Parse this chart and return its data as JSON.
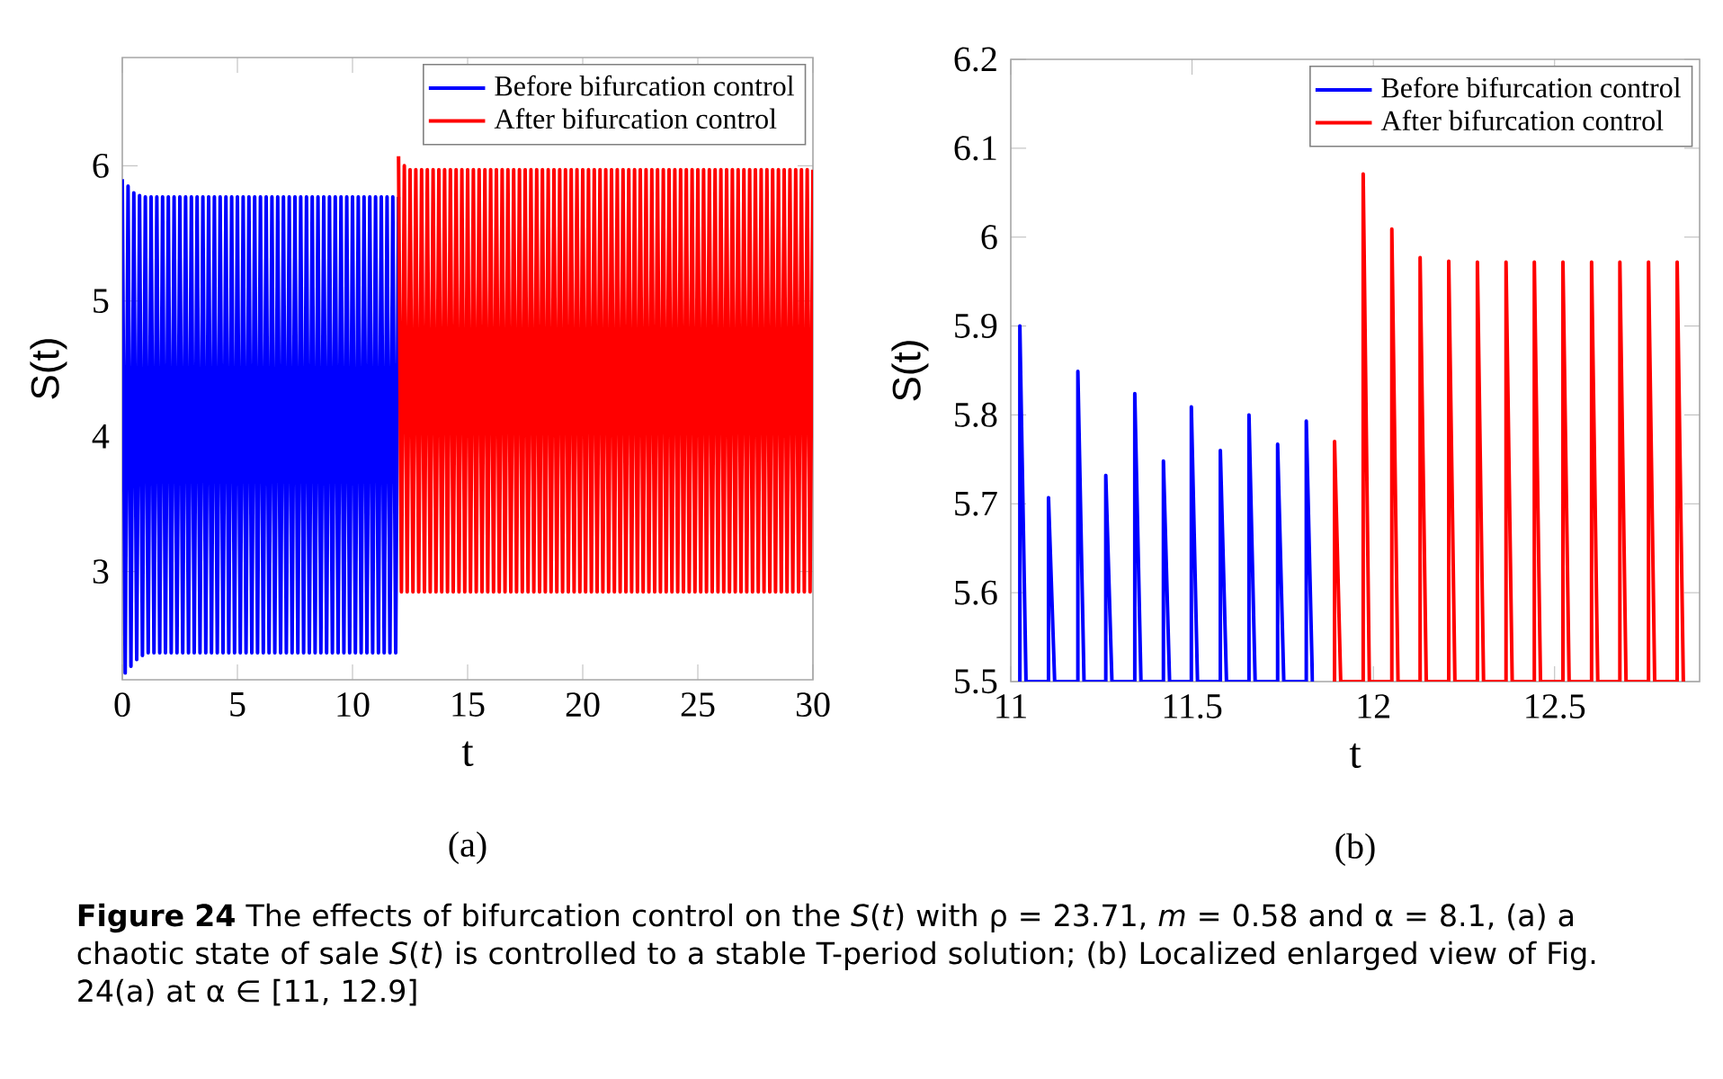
{
  "chart_data": [
    {
      "type": "line",
      "subtitle": "(a)",
      "xlabel": "t",
      "ylabel": "S(t)",
      "xlim": [
        0,
        30
      ],
      "ylim": [
        2.2,
        6.8
      ],
      "xticks": [
        0,
        5,
        10,
        15,
        20,
        25,
        30
      ],
      "yticks": [
        3,
        4,
        5,
        6
      ],
      "legend": "top right",
      "line_style": "solid",
      "annotations": [
        "**Figure 24** The effects of bifurcation control on the *S*(*t*) with ρ = 23.71, *m* = 0.58 and α = 8.1, (a) a chaotic state of sale *S*(*t*) is controlled to a stable T-period solution; (b) Localized enlarged view of Fig. 24(a) at α ∈ [11, 12.9]"
      ],
      "series": [
        {
          "name": "Before bifurcation control",
          "color": "#0000ff",
          "x": [
            0,
            0.125,
            0.25,
            0.375,
            0.5,
            0.625,
            0.75,
            0.875,
            1,
            1.125,
            1.25,
            1.375,
            1.5,
            1.625,
            1.75,
            1.875,
            2,
            2.125,
            2.25,
            2.375,
            2.5,
            2.625,
            2.75,
            2.875,
            3,
            3.125,
            3.25,
            3.375,
            3.5,
            3.625,
            3.75,
            3.875,
            4,
            4.125,
            4.25,
            4.375,
            4.5,
            4.625,
            4.75,
            4.875,
            5,
            5.125,
            5.25,
            5.375,
            5.5,
            5.625,
            5.75,
            5.875,
            6,
            6.125,
            6.25,
            6.375,
            6.5,
            6.625,
            6.75,
            6.875,
            7,
            7.125,
            7.25,
            7.375,
            7.5,
            7.625,
            7.75,
            7.875,
            8,
            8.125,
            8.25,
            8.375,
            8.5,
            8.625,
            8.75,
            8.875,
            9,
            9.125,
            9.25,
            9.375,
            9.5,
            9.625,
            9.75,
            9.875,
            10,
            10.125,
            10.25,
            10.375,
            10.5,
            10.625,
            10.75,
            10.875,
            11,
            11.125,
            11.25,
            11.375,
            11.5,
            11.625,
            11.75,
            11.875,
            12
          ],
          "values": [
            5.9,
            2.25,
            5.85,
            2.3,
            5.8,
            2.35,
            5.78,
            2.38,
            5.77,
            2.4,
            5.77,
            2.4,
            5.77,
            2.4,
            5.77,
            2.4,
            5.77,
            2.4,
            5.77,
            2.4,
            5.77,
            2.4,
            5.77,
            2.4,
            5.77,
            2.4,
            5.77,
            2.4,
            5.77,
            2.4,
            5.77,
            2.4,
            5.77,
            2.4,
            5.77,
            2.4,
            5.77,
            2.4,
            5.77,
            2.4,
            5.77,
            2.4,
            5.77,
            2.4,
            5.77,
            2.4,
            5.77,
            2.4,
            5.77,
            2.4,
            5.77,
            2.4,
            5.77,
            2.4,
            5.77,
            2.4,
            5.77,
            2.4,
            5.77,
            2.4,
            5.77,
            2.4,
            5.77,
            2.4,
            5.77,
            2.4,
            5.77,
            2.4,
            5.77,
            2.4,
            5.77,
            2.4,
            5.77,
            2.4,
            5.77,
            2.4,
            5.77,
            2.4,
            5.77,
            2.4,
            5.77,
            2.4,
            5.77,
            2.4,
            5.77,
            2.4,
            5.77,
            2.4,
            5.77,
            2.4,
            5.77,
            2.4,
            5.77,
            2.4,
            5.77,
            2.4,
            5.77
          ]
        },
        {
          "name": "After bifurcation control",
          "color": "#ff0000",
          "x": [
            12,
            12.125,
            12.25,
            12.375,
            12.5,
            12.625,
            12.75,
            12.875,
            13,
            13.125,
            13.25,
            13.375,
            13.5,
            13.625,
            13.75,
            13.875,
            14,
            14.125,
            14.25,
            14.375,
            14.5,
            14.625,
            14.75,
            14.875,
            15,
            15.125,
            15.25,
            15.375,
            15.5,
            15.625,
            15.75,
            15.875,
            16,
            16.125,
            16.25,
            16.375,
            16.5,
            16.625,
            16.75,
            16.875,
            17,
            17.125,
            17.25,
            17.375,
            17.5,
            17.625,
            17.75,
            17.875,
            18,
            18.125,
            18.25,
            18.375,
            18.5,
            18.625,
            18.75,
            18.875,
            19,
            19.125,
            19.25,
            19.375,
            19.5,
            19.625,
            19.75,
            19.875,
            20,
            20.125,
            20.25,
            20.375,
            20.5,
            20.625,
            20.75,
            20.875,
            21,
            21.125,
            21.25,
            21.375,
            21.5,
            21.625,
            21.75,
            21.875,
            22,
            22.125,
            22.25,
            22.375,
            22.5,
            22.625,
            22.75,
            22.875,
            23,
            23.125,
            23.25,
            23.375,
            23.5,
            23.625,
            23.75,
            23.875,
            24,
            24.125,
            24.25,
            24.375,
            24.5,
            24.625,
            24.75,
            24.875,
            25,
            25.125,
            25.25,
            25.375,
            25.5,
            25.625,
            25.75,
            25.875,
            26,
            26.125,
            26.25,
            26.375,
            26.5,
            26.625,
            26.75,
            26.875,
            27,
            27.125,
            27.25,
            27.375,
            27.5,
            27.625,
            27.75,
            27.875,
            28,
            28.125,
            28.25,
            28.375,
            28.5,
            28.625,
            28.75,
            28.875,
            29,
            29.125,
            29.25,
            29.375,
            29.5,
            29.625,
            29.75,
            29.875,
            30
          ],
          "values": [
            6.07,
            2.85,
            6.0,
            2.85,
            5.97,
            2.85,
            5.97,
            2.85,
            5.97,
            2.85,
            5.97,
            2.85,
            5.97,
            2.85,
            5.97,
            2.85,
            5.97,
            2.85,
            5.97,
            2.85,
            5.97,
            2.85,
            5.97,
            2.85,
            5.97,
            2.85,
            5.97,
            2.85,
            5.97,
            2.85,
            5.97,
            2.85,
            5.97,
            2.85,
            5.97,
            2.85,
            5.97,
            2.85,
            5.97,
            2.85,
            5.97,
            2.85,
            5.97,
            2.85,
            5.97,
            2.85,
            5.97,
            2.85,
            5.97,
            2.85,
            5.97,
            2.85,
            5.97,
            2.85,
            5.97,
            2.85,
            5.97,
            2.85,
            5.97,
            2.85,
            5.97,
            2.85,
            5.97,
            2.85,
            5.97,
            2.85,
            5.97,
            2.85,
            5.97,
            2.85,
            5.97,
            2.85,
            5.97,
            2.85,
            5.97,
            2.85,
            5.97,
            2.85,
            5.97,
            2.85,
            5.97,
            2.85,
            5.97,
            2.85,
            5.97,
            2.85,
            5.97,
            2.85,
            5.97,
            2.85,
            5.97,
            2.85,
            5.97,
            2.85,
            5.97,
            2.85,
            5.97,
            2.85,
            5.97,
            2.85,
            5.97,
            2.85,
            5.97,
            2.85,
            5.97,
            2.85,
            5.97,
            2.85,
            5.97,
            2.85,
            5.97,
            2.85,
            5.97,
            2.85,
            5.97,
            2.85,
            5.97,
            2.85,
            5.97,
            2.85,
            5.97,
            2.85,
            5.97,
            2.85,
            5.97,
            2.85,
            5.97,
            2.85,
            5.97,
            2.85,
            5.97,
            2.85,
            5.97,
            2.85,
            5.97,
            2.85,
            5.97,
            2.85,
            5.97,
            2.85,
            5.97,
            2.85,
            5.97,
            2.85,
            5.97
          ]
        }
      ]
    },
    {
      "type": "line",
      "subtitle": "(b)",
      "xlabel": "t",
      "ylabel": "S(t)",
      "xlim": [
        11,
        12.9
      ],
      "ylim": [
        5.5,
        6.2
      ],
      "xticks": [
        11,
        11.5,
        12,
        12.5
      ],
      "yticks": [
        5.5,
        5.6,
        5.7,
        5.8,
        5.9,
        6,
        6.1,
        6.2
      ],
      "legend": "top right",
      "line_style": "solid",
      "series": [
        {
          "name": "Before bifurcation control",
          "color": "#0000ff",
          "x": [
            11.025,
            11.025,
            11.042,
            11.104,
            11.104,
            11.121,
            11.185,
            11.185,
            11.202,
            11.262,
            11.262,
            11.279,
            11.342,
            11.342,
            11.359,
            11.421,
            11.421,
            11.438,
            11.498,
            11.498,
            11.515,
            11.578,
            11.578,
            11.595,
            11.657,
            11.657,
            11.674,
            11.736,
            11.736,
            11.753,
            11.815,
            11.815,
            11.832
          ],
          "values": [
            5.5,
            5.9,
            5.5,
            5.5,
            5.707,
            5.5,
            5.5,
            5.849,
            5.5,
            5.5,
            5.732,
            5.5,
            5.5,
            5.824,
            5.5,
            5.5,
            5.748,
            5.5,
            5.5,
            5.809,
            5.5,
            5.5,
            5.76,
            5.5,
            5.5,
            5.8,
            5.5,
            5.5,
            5.767,
            5.5,
            5.5,
            5.793,
            5.5
          ]
        },
        {
          "name": "After bifurcation control",
          "color": "#ff0000",
          "x": [
            11.893,
            11.893,
            11.91,
            11.972,
            11.972,
            11.989,
            12.051,
            12.051,
            12.068,
            12.129,
            12.129,
            12.146,
            12.208,
            12.208,
            12.225,
            12.287,
            12.287,
            12.304,
            12.366,
            12.366,
            12.383,
            12.444,
            12.444,
            12.461,
            12.523,
            12.523,
            12.54,
            12.602,
            12.602,
            12.619,
            12.68,
            12.68,
            12.697,
            12.759,
            12.759,
            12.776,
            12.838,
            12.838,
            12.855
          ],
          "values": [
            5.5,
            5.77,
            5.5,
            5.5,
            6.071,
            5.5,
            5.5,
            6.009,
            5.5,
            5.5,
            5.977,
            5.5,
            5.5,
            5.973,
            5.5,
            5.5,
            5.972,
            5.5,
            5.5,
            5.972,
            5.5,
            5.5,
            5.972,
            5.5,
            5.5,
            5.972,
            5.5,
            5.5,
            5.972,
            5.5,
            5.5,
            5.972,
            5.5,
            5.5,
            5.972,
            5.5,
            5.5,
            5.972,
            5.5
          ]
        }
      ]
    }
  ]
}
